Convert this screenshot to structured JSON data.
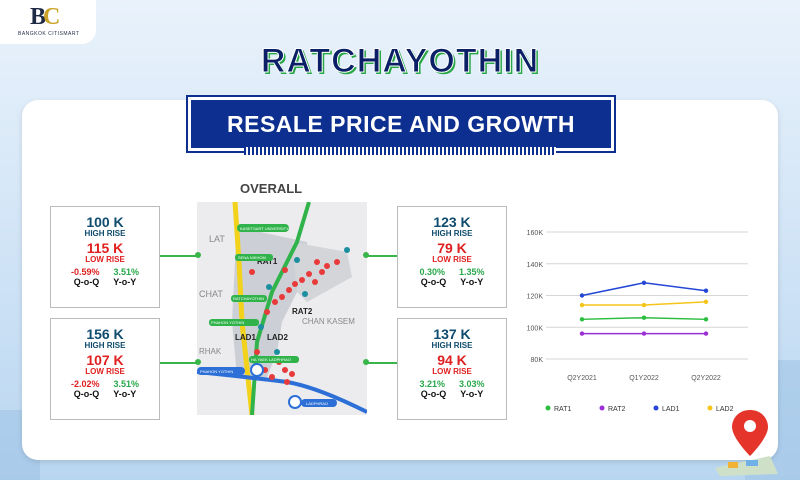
{
  "brand": {
    "logo_text": "BC",
    "logo_sub": "BANGKOK CITISMART"
  },
  "header": {
    "title": "RATCHAYOTHIN",
    "subtitle": "RESALE PRICE AND GROWTH"
  },
  "overall_label": "OVERALL",
  "map": {
    "labels": [
      "RAT1",
      "RAT2",
      "LAD1",
      "LAD2"
    ],
    "roads": [
      "LAT",
      "CHAT",
      "CHAN KASEM",
      "RHAK"
    ],
    "stations": [
      "KASETSART UNIVERSITY",
      "SENA NIKHOM",
      "RATCHAYOTHIN",
      "PHAHON YOTHIN",
      "HA YAEK LADPHRAO",
      "LADPHRAO"
    ]
  },
  "stats": [
    {
      "id": "rat1",
      "high_value": "100 K",
      "high_label": "HIGH RISE",
      "low_value": "115 K",
      "low_label": "LOW RISE",
      "qoq_value": "-0.59%",
      "yoy_value": "3.51%",
      "qoq_label": "Q-o-Q",
      "yoy_label": "Y-o-Y",
      "qoq_color": "#e02020",
      "yoy_color": "#27a84a"
    },
    {
      "id": "lad1",
      "high_value": "156 K",
      "high_label": "HIGH RISE",
      "low_value": "107 K",
      "low_label": "LOW RISE",
      "qoq_value": "-2.02%",
      "yoy_value": "3.51%",
      "qoq_label": "Q-o-Q",
      "yoy_label": "Y-o-Y",
      "qoq_color": "#e02020",
      "yoy_color": "#27a84a"
    },
    {
      "id": "rat2",
      "high_value": "123 K",
      "high_label": "HIGH RISE",
      "low_value": "79 K",
      "low_label": "LOW RISE",
      "qoq_value": "0.30%",
      "yoy_value": "1.35%",
      "qoq_label": "Q-o-Q",
      "yoy_label": "Y-o-Y",
      "qoq_color": "#27a84a",
      "yoy_color": "#27a84a"
    },
    {
      "id": "lad2",
      "high_value": "137 K",
      "high_label": "HIGH RISE",
      "low_value": "94 K",
      "low_label": "LOW RISE",
      "qoq_value": "3.21%",
      "yoy_value": "3.03%",
      "qoq_label": "Q-o-Q",
      "yoy_label": "Y-o-Y",
      "qoq_color": "#27a84a",
      "yoy_color": "#27a84a"
    }
  ],
  "chart_data": {
    "type": "line",
    "categories": [
      "Q2Y2021",
      "Q1Y2022",
      "Q2Y2022"
    ],
    "yticks": [
      80000,
      100000,
      120000,
      140000,
      160000
    ],
    "ytick_labels": [
      "80K",
      "100K",
      "120K",
      "140K",
      "160K"
    ],
    "ylim": [
      80000,
      160000
    ],
    "grid": true,
    "legend_position": "bottom",
    "series": [
      {
        "name": "RAT1",
        "color": "#2bbd3e",
        "values": [
          105000,
          106000,
          105000
        ]
      },
      {
        "name": "RAT2",
        "color": "#9b2fd6",
        "values": [
          96000,
          96000,
          96000
        ]
      },
      {
        "name": "LAD1",
        "color": "#2447d6",
        "values": [
          120000,
          128000,
          123000
        ]
      },
      {
        "name": "LAD2",
        "color": "#f5c518",
        "values": [
          114000,
          114000,
          116000
        ]
      }
    ]
  }
}
